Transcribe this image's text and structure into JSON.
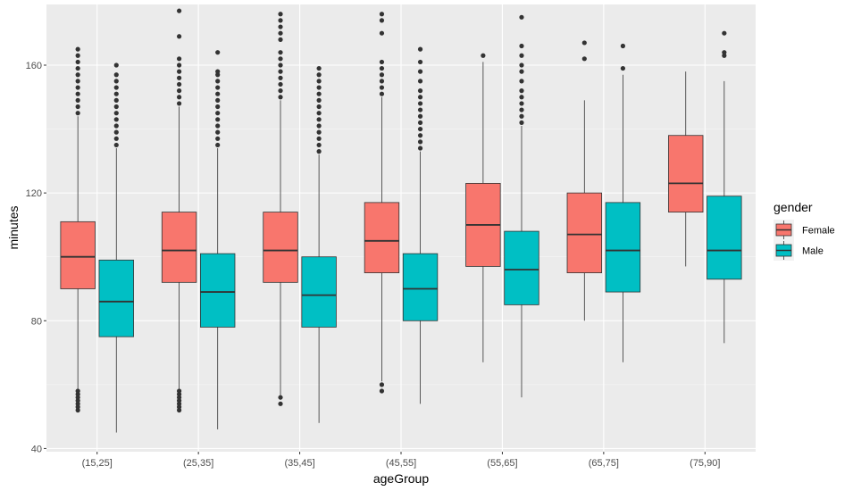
{
  "chart_data": {
    "type": "boxplot",
    "xlabel": "ageGroup",
    "ylabel": "minutes",
    "ylim": [
      39,
      179
    ],
    "yticks": [
      40,
      80,
      120,
      160
    ],
    "grid": true,
    "legend": {
      "title": "gender",
      "position": "right"
    },
    "categories": [
      "(15,25]",
      "(25,35]",
      "(35,45]",
      "(45,55]",
      "(55,65]",
      "(65,75]",
      "(75,90]"
    ],
    "series": [
      {
        "name": "Female",
        "color": "#F8766D",
        "boxes": [
          {
            "whisker_low": 52,
            "q1": 90,
            "median": 100,
            "q3": 111,
            "whisker_high": 144,
            "outliers": [
              52,
              53,
              54,
              55,
              56,
              57,
              58,
              145,
              147,
              149,
              151,
              153,
              155,
              157,
              159,
              161,
              163,
              165
            ]
          },
          {
            "whisker_low": 52,
            "q1": 92,
            "median": 102,
            "q3": 114,
            "whisker_high": 147,
            "outliers": [
              52,
              53,
              54,
              55,
              56,
              57,
              58,
              148,
              150,
              152,
              154,
              156,
              158,
              160,
              162,
              169,
              177
            ]
          },
          {
            "whisker_low": 56,
            "q1": 92,
            "median": 102,
            "q3": 114,
            "whisker_high": 149,
            "outliers": [
              54,
              56,
              150,
              152,
              154,
              156,
              158,
              160,
              162,
              164,
              168,
              170,
              172,
              174,
              176
            ]
          },
          {
            "whisker_low": 61,
            "q1": 95,
            "median": 105,
            "q3": 117,
            "whisker_high": 150,
            "outliers": [
              58,
              60,
              151,
              153,
              155,
              157,
              159,
              161,
              170,
              174,
              176
            ]
          },
          {
            "whisker_low": 67,
            "q1": 97,
            "median": 110,
            "q3": 123,
            "whisker_high": 161,
            "outliers": [
              163
            ]
          },
          {
            "whisker_low": 80,
            "q1": 95,
            "median": 107,
            "q3": 120,
            "whisker_high": 149,
            "outliers": [
              162,
              167
            ]
          },
          {
            "whisker_low": 97,
            "q1": 114,
            "median": 123,
            "q3": 138,
            "whisker_high": 158,
            "outliers": []
          }
        ]
      },
      {
        "name": "Male",
        "color": "#00BFC4",
        "boxes": [
          {
            "whisker_low": 45,
            "q1": 75,
            "median": 86,
            "q3": 99,
            "whisker_high": 134,
            "outliers": [
              135,
              137,
              139,
              141,
              143,
              145,
              147,
              149,
              151,
              153,
              155,
              157,
              160
            ]
          },
          {
            "whisker_low": 46,
            "q1": 78,
            "median": 89,
            "q3": 101,
            "whisker_high": 134,
            "outliers": [
              135,
              137,
              139,
              141,
              143,
              145,
              147,
              149,
              151,
              153,
              155,
              157,
              158,
              164
            ]
          },
          {
            "whisker_low": 48,
            "q1": 78,
            "median": 88,
            "q3": 100,
            "whisker_high": 132,
            "outliers": [
              133,
              135,
              137,
              139,
              141,
              143,
              145,
              147,
              149,
              151,
              153,
              155,
              157,
              159
            ]
          },
          {
            "whisker_low": 54,
            "q1": 80,
            "median": 90,
            "q3": 101,
            "whisker_high": 133,
            "outliers": [
              134,
              136,
              138,
              140,
              142,
              144,
              146,
              148,
              150,
              152,
              155,
              158,
              161,
              165
            ]
          },
          {
            "whisker_low": 56,
            "q1": 85,
            "median": 96,
            "q3": 108,
            "whisker_high": 141,
            "outliers": [
              142,
              144,
              146,
              148,
              150,
              152,
              155,
              158,
              160,
              163,
              166,
              175
            ]
          },
          {
            "whisker_low": 67,
            "q1": 89,
            "median": 102,
            "q3": 117,
            "whisker_high": 157,
            "outliers": [
              159,
              166
            ]
          },
          {
            "whisker_low": 73,
            "q1": 93,
            "median": 102,
            "q3": 119,
            "whisker_high": 155,
            "outliers": [
              163,
              164,
              170
            ]
          }
        ]
      }
    ]
  }
}
